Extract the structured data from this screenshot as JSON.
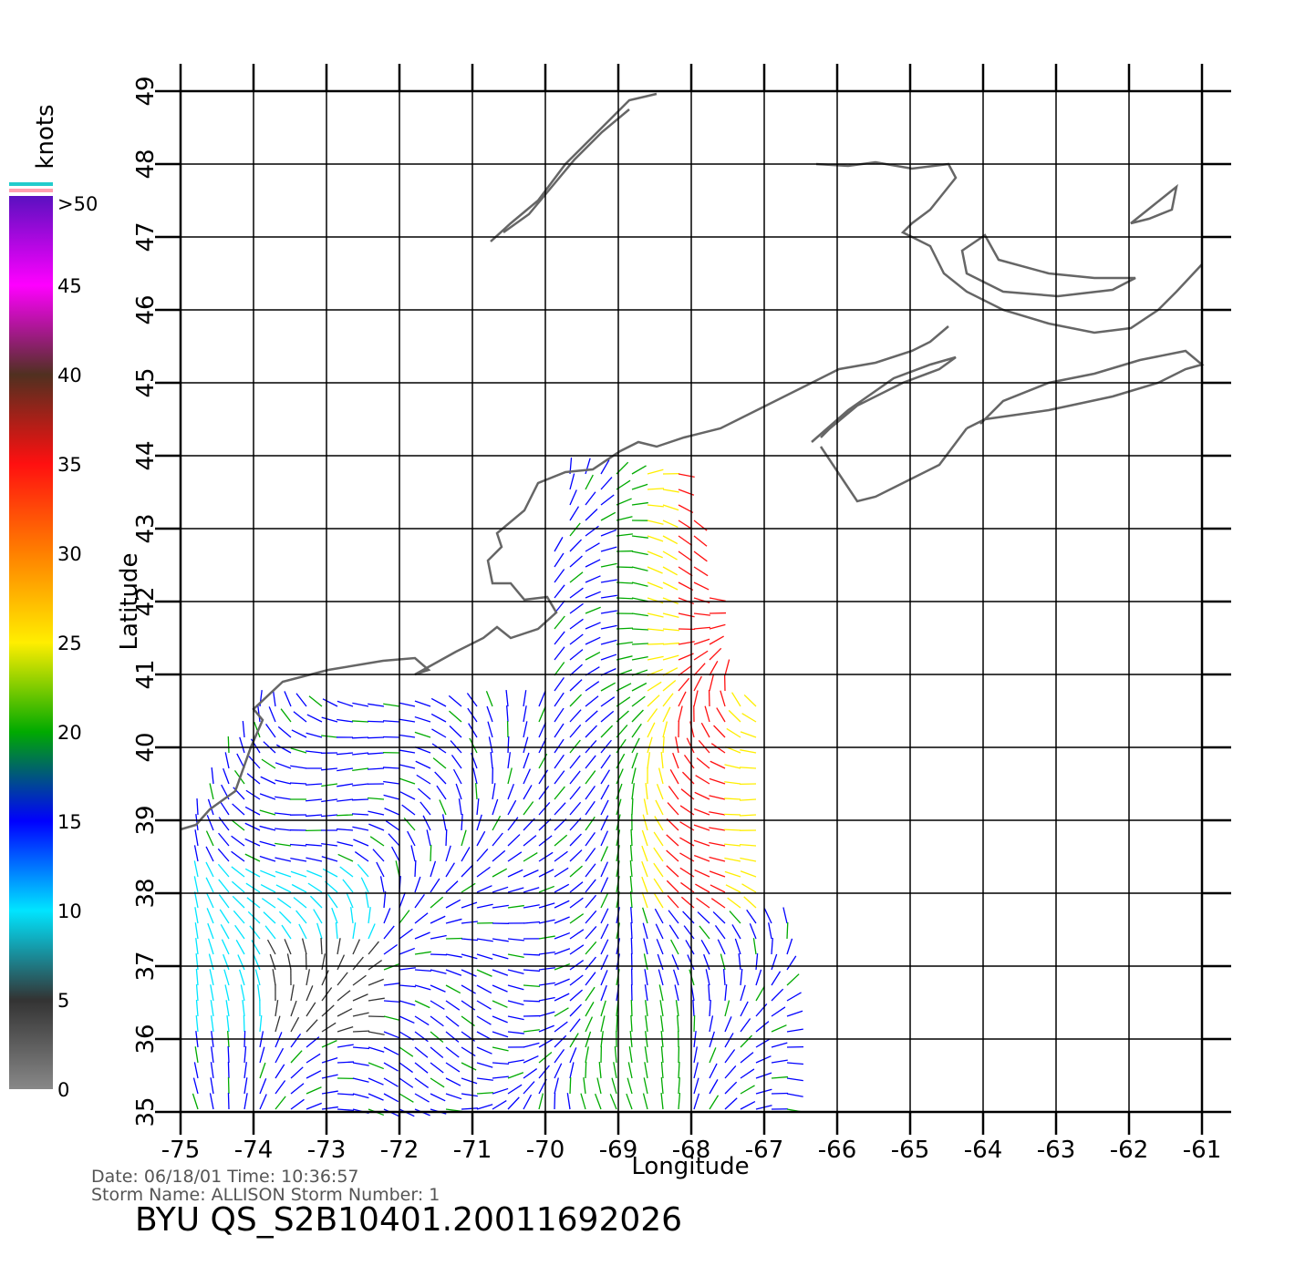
{
  "chart_data": {
    "type": "map",
    "xlabel": "Longitude",
    "ylabel": "Latitude",
    "xlim": [
      -75,
      -61
    ],
    "ylim": [
      35,
      49
    ],
    "xticks": [
      -75,
      -74,
      -73,
      -72,
      -71,
      -70,
      -69,
      -68,
      -67,
      -66,
      -65,
      -64,
      -63,
      -62,
      -61
    ],
    "yticks": [
      35,
      36,
      37,
      38,
      39,
      40,
      41,
      42,
      43,
      44,
      45,
      46,
      47,
      48,
      49
    ],
    "grid": true,
    "colorbar": {
      "label": "knots",
      "lim": [
        0,
        50
      ],
      "ticks": [
        0,
        5,
        10,
        15,
        20,
        25,
        30,
        35,
        40,
        45,
        {
          "value": 50,
          "label": ">50"
        }
      ],
      "colors": [
        "#888888",
        "#333333",
        "#00e5ff",
        "#0000ff",
        "#00aa00",
        "#ffee00",
        "#ff8000",
        "#ff1010",
        "#503020",
        "#ff00ff",
        "#5a10c0"
      ]
    },
    "footer": {
      "line1": "Date: 06/18/01   Time: 10:36:57",
      "line2": "Storm Name: ALLISON   Storm Number: 1",
      "id": "BYU  QS_S2B10401.20011692026"
    }
  }
}
